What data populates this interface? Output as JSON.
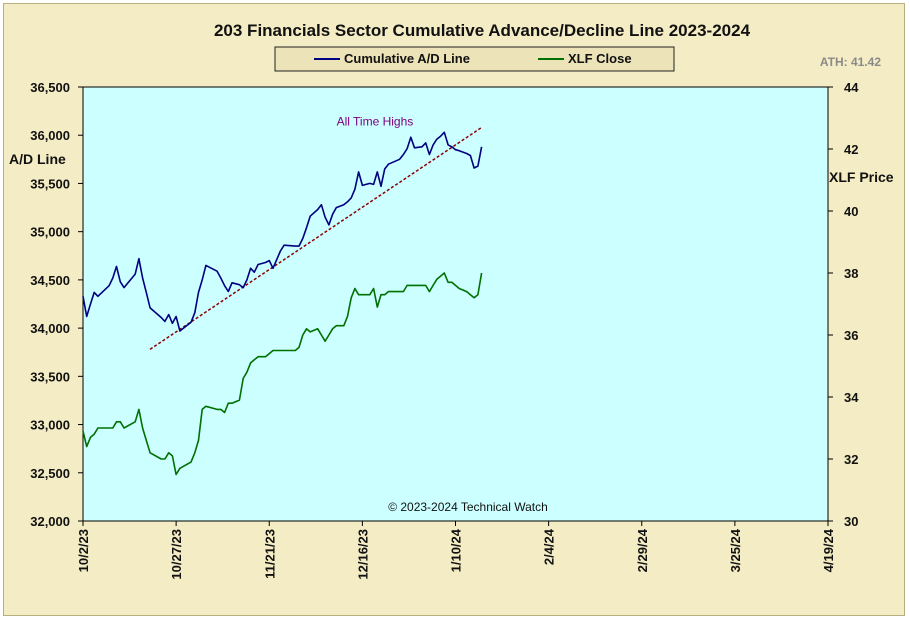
{
  "chart_data": {
    "type": "line",
    "title": "203 Financials  Sector Cumulative  Advance/Decline  Line 2023-2024",
    "ylabel_left": "A/D Line",
    "ylabel_right": "XLF Price",
    "ylim_left": [
      32000,
      36500
    ],
    "ylim_right": [
      30,
      44
    ],
    "yticks_left": [
      "32,000",
      "32,500",
      "33,000",
      "33,500",
      "34,000",
      "34,500",
      "35,000",
      "35,500",
      "36,000",
      "36,500"
    ],
    "yticks_right": [
      "30",
      "32",
      "34",
      "36",
      "38",
      "40",
      "42",
      "44"
    ],
    "xticks": [
      "10/2/23",
      "10/27/23",
      "11/21/23",
      "12/16/23",
      "1/10/24",
      "2/4/24",
      "2/29/24",
      "3/25/24",
      "4/19/24"
    ],
    "xlim": [
      "2023-10-02",
      "2024-04-19"
    ],
    "grid": false,
    "legend_position": "top-center",
    "ath_label": "ATH: 41.42",
    "copyright": "© 2023-2024  Technical Watch",
    "annotations": [
      {
        "text": "All Time Highs",
        "x": "2023-12-14",
        "y": 36080
      }
    ],
    "trendline": {
      "axis": "left",
      "color": "#8b0000",
      "style": "dashed",
      "points": [
        [
          "2023-10-20",
          33780
        ],
        [
          "2024-01-17",
          36080
        ]
      ]
    },
    "series": [
      {
        "name": "Cumulative A/D Line",
        "axis": "left",
        "color": "#000080",
        "points": [
          [
            "2023-10-02",
            34330
          ],
          [
            "2023-10-03",
            34120
          ],
          [
            "2023-10-04",
            34250
          ],
          [
            "2023-10-05",
            34370
          ],
          [
            "2023-10-06",
            34330
          ],
          [
            "2023-10-09",
            34440
          ],
          [
            "2023-10-10",
            34520
          ],
          [
            "2023-10-11",
            34640
          ],
          [
            "2023-10-12",
            34480
          ],
          [
            "2023-10-13",
            34420
          ],
          [
            "2023-10-16",
            34560
          ],
          [
            "2023-10-17",
            34720
          ],
          [
            "2023-10-18",
            34520
          ],
          [
            "2023-10-19",
            34370
          ],
          [
            "2023-10-20",
            34210
          ],
          [
            "2023-10-23",
            34110
          ],
          [
            "2023-10-24",
            34070
          ],
          [
            "2023-10-25",
            34140
          ],
          [
            "2023-10-26",
            34050
          ],
          [
            "2023-10-27",
            34120
          ],
          [
            "2023-10-28",
            33970
          ],
          [
            "2023-10-31",
            34060
          ],
          [
            "2023-11-01",
            34160
          ],
          [
            "2023-11-02",
            34370
          ],
          [
            "2023-11-03",
            34500
          ],
          [
            "2023-11-04",
            34650
          ],
          [
            "2023-11-07",
            34590
          ],
          [
            "2023-11-08",
            34520
          ],
          [
            "2023-11-09",
            34440
          ],
          [
            "2023-11-10",
            34380
          ],
          [
            "2023-11-11",
            34470
          ],
          [
            "2023-11-13",
            34450
          ],
          [
            "2023-11-14",
            34420
          ],
          [
            "2023-11-15",
            34500
          ],
          [
            "2023-11-16",
            34620
          ],
          [
            "2023-11-17",
            34580
          ],
          [
            "2023-11-18",
            34660
          ],
          [
            "2023-11-20",
            34680
          ],
          [
            "2023-11-21",
            34700
          ],
          [
            "2023-11-22",
            34620
          ],
          [
            "2023-11-24",
            34800
          ],
          [
            "2023-11-25",
            34860
          ],
          [
            "2023-11-28",
            34850
          ],
          [
            "2023-11-29",
            34850
          ],
          [
            "2023-11-30",
            34930
          ],
          [
            "2023-12-01",
            35040
          ],
          [
            "2023-12-02",
            35160
          ],
          [
            "2023-12-04",
            35230
          ],
          [
            "2023-12-05",
            35280
          ],
          [
            "2023-12-06",
            35150
          ],
          [
            "2023-12-07",
            35070
          ],
          [
            "2023-12-08",
            35180
          ],
          [
            "2023-12-09",
            35250
          ],
          [
            "2023-12-11",
            35280
          ],
          [
            "2023-12-12",
            35310
          ],
          [
            "2023-12-13",
            35350
          ],
          [
            "2023-12-14",
            35440
          ],
          [
            "2023-12-15",
            35620
          ],
          [
            "2023-12-16",
            35480
          ],
          [
            "2023-12-18",
            35500
          ],
          [
            "2023-12-19",
            35490
          ],
          [
            "2023-12-20",
            35620
          ],
          [
            "2023-12-21",
            35470
          ],
          [
            "2023-12-22",
            35650
          ],
          [
            "2023-12-23",
            35700
          ],
          [
            "2023-12-26",
            35750
          ],
          [
            "2023-12-27",
            35800
          ],
          [
            "2023-12-28",
            35860
          ],
          [
            "2023-12-29",
            35980
          ],
          [
            "2023-12-30",
            35870
          ],
          [
            "2024-01-01",
            35880
          ],
          [
            "2024-01-02",
            35920
          ],
          [
            "2024-01-03",
            35800
          ],
          [
            "2024-01-04",
            35900
          ],
          [
            "2024-01-05",
            35960
          ],
          [
            "2024-01-06",
            35990
          ],
          [
            "2024-01-07",
            36030
          ],
          [
            "2024-01-08",
            35900
          ],
          [
            "2024-01-09",
            35880
          ],
          [
            "2024-01-10",
            35850
          ],
          [
            "2024-01-11",
            35840
          ],
          [
            "2024-01-13",
            35810
          ],
          [
            "2024-01-14",
            35790
          ],
          [
            "2024-01-15",
            35660
          ],
          [
            "2024-01-16",
            35680
          ],
          [
            "2024-01-17",
            35880
          ]
        ]
      },
      {
        "name": "XLF Close",
        "axis": "right",
        "color": "#007000",
        "points": [
          [
            "2023-10-02",
            32.9
          ],
          [
            "2023-10-03",
            32.4
          ],
          [
            "2023-10-04",
            32.7
          ],
          [
            "2023-10-05",
            32.8
          ],
          [
            "2023-10-06",
            33.0
          ],
          [
            "2023-10-09",
            33.0
          ],
          [
            "2023-10-10",
            33.0
          ],
          [
            "2023-10-11",
            33.2
          ],
          [
            "2023-10-12",
            33.2
          ],
          [
            "2023-10-13",
            33.0
          ],
          [
            "2023-10-16",
            33.2
          ],
          [
            "2023-10-17",
            33.6
          ],
          [
            "2023-10-18",
            33.0
          ],
          [
            "2023-10-19",
            32.6
          ],
          [
            "2023-10-20",
            32.2
          ],
          [
            "2023-10-23",
            32.0
          ],
          [
            "2023-10-24",
            32.0
          ],
          [
            "2023-10-25",
            32.2
          ],
          [
            "2023-10-26",
            32.1
          ],
          [
            "2023-10-27",
            31.5
          ],
          [
            "2023-10-28",
            31.7
          ],
          [
            "2023-10-31",
            31.9
          ],
          [
            "2023-11-01",
            32.2
          ],
          [
            "2023-11-02",
            32.6
          ],
          [
            "2023-11-03",
            33.6
          ],
          [
            "2023-11-04",
            33.7
          ],
          [
            "2023-11-07",
            33.6
          ],
          [
            "2023-11-08",
            33.6
          ],
          [
            "2023-11-09",
            33.5
          ],
          [
            "2023-11-10",
            33.8
          ],
          [
            "2023-11-11",
            33.8
          ],
          [
            "2023-11-13",
            33.9
          ],
          [
            "2023-11-14",
            34.6
          ],
          [
            "2023-11-15",
            34.8
          ],
          [
            "2023-11-16",
            35.1
          ],
          [
            "2023-11-17",
            35.2
          ],
          [
            "2023-11-18",
            35.3
          ],
          [
            "2023-11-20",
            35.3
          ],
          [
            "2023-11-21",
            35.4
          ],
          [
            "2023-11-22",
            35.5
          ],
          [
            "2023-11-24",
            35.5
          ],
          [
            "2023-11-25",
            35.5
          ],
          [
            "2023-11-28",
            35.5
          ],
          [
            "2023-11-29",
            35.6
          ],
          [
            "2023-11-30",
            36.0
          ],
          [
            "2023-12-01",
            36.2
          ],
          [
            "2023-12-02",
            36.1
          ],
          [
            "2023-12-04",
            36.2
          ],
          [
            "2023-12-05",
            36.0
          ],
          [
            "2023-12-06",
            35.8
          ],
          [
            "2023-12-07",
            36.0
          ],
          [
            "2023-12-08",
            36.2
          ],
          [
            "2023-12-09",
            36.3
          ],
          [
            "2023-12-11",
            36.3
          ],
          [
            "2023-12-12",
            36.6
          ],
          [
            "2023-12-13",
            37.2
          ],
          [
            "2023-12-14",
            37.5
          ],
          [
            "2023-12-15",
            37.3
          ],
          [
            "2023-12-16",
            37.3
          ],
          [
            "2023-12-18",
            37.3
          ],
          [
            "2023-12-19",
            37.5
          ],
          [
            "2023-12-20",
            36.9
          ],
          [
            "2023-12-21",
            37.3
          ],
          [
            "2023-12-22",
            37.3
          ],
          [
            "2023-12-23",
            37.4
          ],
          [
            "2023-12-26",
            37.4
          ],
          [
            "2023-12-27",
            37.4
          ],
          [
            "2023-12-28",
            37.6
          ],
          [
            "2023-12-29",
            37.6
          ],
          [
            "2023-12-30",
            37.6
          ],
          [
            "2024-01-01",
            37.6
          ],
          [
            "2024-01-02",
            37.6
          ],
          [
            "2024-01-03",
            37.4
          ],
          [
            "2024-01-04",
            37.6
          ],
          [
            "2024-01-05",
            37.8
          ],
          [
            "2024-01-06",
            37.9
          ],
          [
            "2024-01-07",
            38.0
          ],
          [
            "2024-01-08",
            37.7
          ],
          [
            "2024-01-09",
            37.7
          ],
          [
            "2024-01-10",
            37.6
          ],
          [
            "2024-01-11",
            37.5
          ],
          [
            "2024-01-13",
            37.4
          ],
          [
            "2024-01-14",
            37.3
          ],
          [
            "2024-01-15",
            37.2
          ],
          [
            "2024-01-16",
            37.3
          ],
          [
            "2024-01-17",
            38.0
          ]
        ]
      }
    ]
  }
}
